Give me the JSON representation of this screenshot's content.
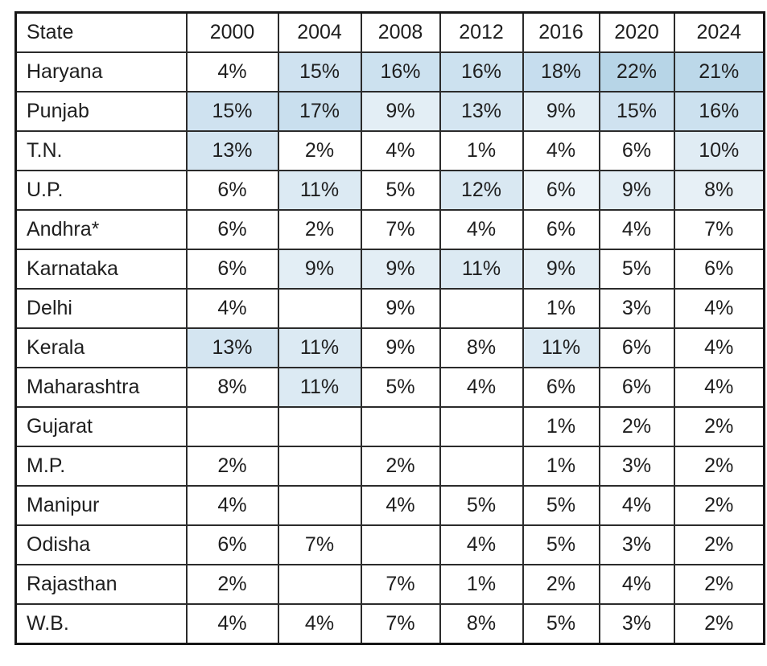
{
  "table": {
    "header": [
      "State",
      "2000",
      "2004",
      "2008",
      "2012",
      "2016",
      "2020",
      "2024"
    ],
    "rows": [
      {
        "state": "Haryana",
        "cells": [
          {
            "t": "4%"
          },
          {
            "t": "15%",
            "bg": "#cfe2f0"
          },
          {
            "t": "16%",
            "bg": "#cce1ef"
          },
          {
            "t": "16%",
            "bg": "#cce1ef"
          },
          {
            "t": "18%",
            "bg": "#c6ddee"
          },
          {
            "t": "22%",
            "bg": "#b7d5e7"
          },
          {
            "t": "21%",
            "bg": "#bcd8e9"
          }
        ]
      },
      {
        "state": "Punjab",
        "cells": [
          {
            "t": "15%",
            "bg": "#cfe2f0"
          },
          {
            "t": "17%",
            "bg": "#c9dfee"
          },
          {
            "t": "9%",
            "bg": "#e3eef5"
          },
          {
            "t": "13%",
            "bg": "#d4e5f1"
          },
          {
            "t": "9%",
            "bg": "#e3eef5"
          },
          {
            "t": "15%",
            "bg": "#cfe2f0"
          },
          {
            "t": "16%",
            "bg": "#cce1ef"
          }
        ]
      },
      {
        "state": "T.N.",
        "cells": [
          {
            "t": "13%",
            "bg": "#d4e5f1"
          },
          {
            "t": "2%"
          },
          {
            "t": "4%"
          },
          {
            "t": "1%"
          },
          {
            "t": "4%"
          },
          {
            "t": "6%"
          },
          {
            "t": "10%",
            "bg": "#e0ecf4"
          }
        ]
      },
      {
        "state": "U.P.",
        "cells": [
          {
            "t": "6%"
          },
          {
            "t": "11%",
            "bg": "#dceaf3"
          },
          {
            "t": "5%"
          },
          {
            "t": "12%",
            "bg": "#d9e8f2"
          },
          {
            "t": "6%",
            "bg": "#edf4f9"
          },
          {
            "t": "9%",
            "bg": "#e3eef5"
          },
          {
            "t": "8%",
            "bg": "#e7f0f6"
          }
        ]
      },
      {
        "state": "Andhra*",
        "cells": [
          {
            "t": "6%"
          },
          {
            "t": "2%"
          },
          {
            "t": "7%"
          },
          {
            "t": "4%"
          },
          {
            "t": "6%"
          },
          {
            "t": "4%"
          },
          {
            "t": "7%"
          }
        ]
      },
      {
        "state": "Karnataka",
        "cells": [
          {
            "t": "6%"
          },
          {
            "t": "9%",
            "bg": "#e3eef5"
          },
          {
            "t": "9%",
            "bg": "#e3eef5"
          },
          {
            "t": "11%",
            "bg": "#dceaf3"
          },
          {
            "t": "9%",
            "bg": "#e3eef5"
          },
          {
            "t": "5%"
          },
          {
            "t": "6%"
          }
        ]
      },
      {
        "state": "Delhi",
        "cells": [
          {
            "t": "4%"
          },
          {
            "t": ""
          },
          {
            "t": "9%"
          },
          {
            "t": ""
          },
          {
            "t": "1%"
          },
          {
            "t": "3%"
          },
          {
            "t": "4%"
          }
        ]
      },
      {
        "state": "Kerala",
        "cells": [
          {
            "t": "13%",
            "bg": "#d4e5f1"
          },
          {
            "t": "11%",
            "bg": "#dceaf3"
          },
          {
            "t": "9%"
          },
          {
            "t": "8%"
          },
          {
            "t": "11%",
            "bg": "#dceaf3"
          },
          {
            "t": "6%"
          },
          {
            "t": "4%"
          }
        ]
      },
      {
        "state": "Maharashtra",
        "cells": [
          {
            "t": "8%"
          },
          {
            "t": "11%",
            "bg": "#dceaf3"
          },
          {
            "t": "5%"
          },
          {
            "t": "4%"
          },
          {
            "t": "6%"
          },
          {
            "t": "6%"
          },
          {
            "t": "4%"
          }
        ]
      },
      {
        "state": "Gujarat",
        "cells": [
          {
            "t": ""
          },
          {
            "t": ""
          },
          {
            "t": ""
          },
          {
            "t": ""
          },
          {
            "t": "1%"
          },
          {
            "t": "2%"
          },
          {
            "t": "2%"
          }
        ]
      },
      {
        "state": "M.P.",
        "cells": [
          {
            "t": "2%"
          },
          {
            "t": ""
          },
          {
            "t": "2%"
          },
          {
            "t": ""
          },
          {
            "t": "1%"
          },
          {
            "t": "3%"
          },
          {
            "t": "2%"
          }
        ]
      },
      {
        "state": "Manipur",
        "cells": [
          {
            "t": "4%"
          },
          {
            "t": ""
          },
          {
            "t": "4%"
          },
          {
            "t": "5%"
          },
          {
            "t": "5%"
          },
          {
            "t": "4%"
          },
          {
            "t": "2%"
          }
        ]
      },
      {
        "state": "Odisha",
        "cells": [
          {
            "t": "6%"
          },
          {
            "t": "7%"
          },
          {
            "t": ""
          },
          {
            "t": "4%"
          },
          {
            "t": "5%"
          },
          {
            "t": "3%"
          },
          {
            "t": "2%"
          }
        ]
      },
      {
        "state": "Rajasthan",
        "cells": [
          {
            "t": "2%"
          },
          {
            "t": ""
          },
          {
            "t": "7%"
          },
          {
            "t": "1%"
          },
          {
            "t": "2%"
          },
          {
            "t": "4%"
          },
          {
            "t": "2%"
          }
        ]
      },
      {
        "state": "W.B.",
        "cells": [
          {
            "t": "4%"
          },
          {
            "t": "4%"
          },
          {
            "t": "7%"
          },
          {
            "t": "8%"
          },
          {
            "t": "5%"
          },
          {
            "t": "3%"
          },
          {
            "t": "2%"
          }
        ]
      }
    ]
  },
  "chart_data": {
    "type": "table",
    "title": "",
    "columns": [
      "State",
      "2000",
      "2004",
      "2008",
      "2012",
      "2016",
      "2020",
      "2024"
    ],
    "years": [
      2000,
      2004,
      2008,
      2012,
      2016,
      2020,
      2024
    ],
    "unit": "%",
    "series": [
      {
        "name": "Haryana",
        "values": [
          4,
          15,
          16,
          16,
          18,
          22,
          21
        ],
        "highlighted_years": [
          2004,
          2008,
          2012,
          2016,
          2020,
          2024
        ]
      },
      {
        "name": "Punjab",
        "values": [
          15,
          17,
          9,
          13,
          9,
          15,
          16
        ],
        "highlighted_years": [
          2000,
          2004,
          2008,
          2012,
          2016,
          2020,
          2024
        ]
      },
      {
        "name": "T.N.",
        "values": [
          13,
          2,
          4,
          1,
          4,
          6,
          10
        ],
        "highlighted_years": [
          2000,
          2024
        ]
      },
      {
        "name": "U.P.",
        "values": [
          6,
          11,
          5,
          12,
          6,
          9,
          8
        ],
        "highlighted_years": [
          2004,
          2012,
          2016,
          2020,
          2024
        ]
      },
      {
        "name": "Andhra*",
        "values": [
          6,
          2,
          7,
          4,
          6,
          4,
          7
        ],
        "highlighted_years": []
      },
      {
        "name": "Karnataka",
        "values": [
          6,
          9,
          9,
          11,
          9,
          5,
          6
        ],
        "highlighted_years": [
          2004,
          2008,
          2012,
          2016
        ]
      },
      {
        "name": "Delhi",
        "values": [
          4,
          null,
          9,
          null,
          1,
          3,
          4
        ],
        "highlighted_years": []
      },
      {
        "name": "Kerala",
        "values": [
          13,
          11,
          9,
          8,
          11,
          6,
          4
        ],
        "highlighted_years": [
          2000,
          2004,
          2016
        ]
      },
      {
        "name": "Maharashtra",
        "values": [
          8,
          11,
          5,
          4,
          6,
          6,
          4
        ],
        "highlighted_years": [
          2004
        ]
      },
      {
        "name": "Gujarat",
        "values": [
          null,
          null,
          null,
          null,
          1,
          2,
          2
        ],
        "highlighted_years": []
      },
      {
        "name": "M.P.",
        "values": [
          2,
          null,
          2,
          null,
          1,
          3,
          2
        ],
        "highlighted_years": []
      },
      {
        "name": "Manipur",
        "values": [
          4,
          null,
          4,
          5,
          5,
          4,
          2
        ],
        "highlighted_years": []
      },
      {
        "name": "Odisha",
        "values": [
          6,
          7,
          null,
          4,
          5,
          3,
          2
        ],
        "highlighted_years": []
      },
      {
        "name": "Rajasthan",
        "values": [
          2,
          null,
          7,
          1,
          2,
          4,
          2
        ],
        "highlighted_years": []
      },
      {
        "name": "W.B.",
        "values": [
          4,
          4,
          7,
          8,
          5,
          3,
          2
        ],
        "highlighted_years": []
      }
    ],
    "layout_hints": {
      "highlight_shade_range": [
        "#edf4f9",
        "#b7d5e7"
      ],
      "highlight_intensity": "proportional to cell value among highlighted cells",
      "grid": true,
      "legend": false
    }
  },
  "colors": {
    "background": "#ffffff",
    "text": "#1e1e1e",
    "border_outer": "#161616",
    "border_inner": "#2b2b2b",
    "highlight_max": "#b7d5e7",
    "highlight_min": "#edf4f9"
  }
}
